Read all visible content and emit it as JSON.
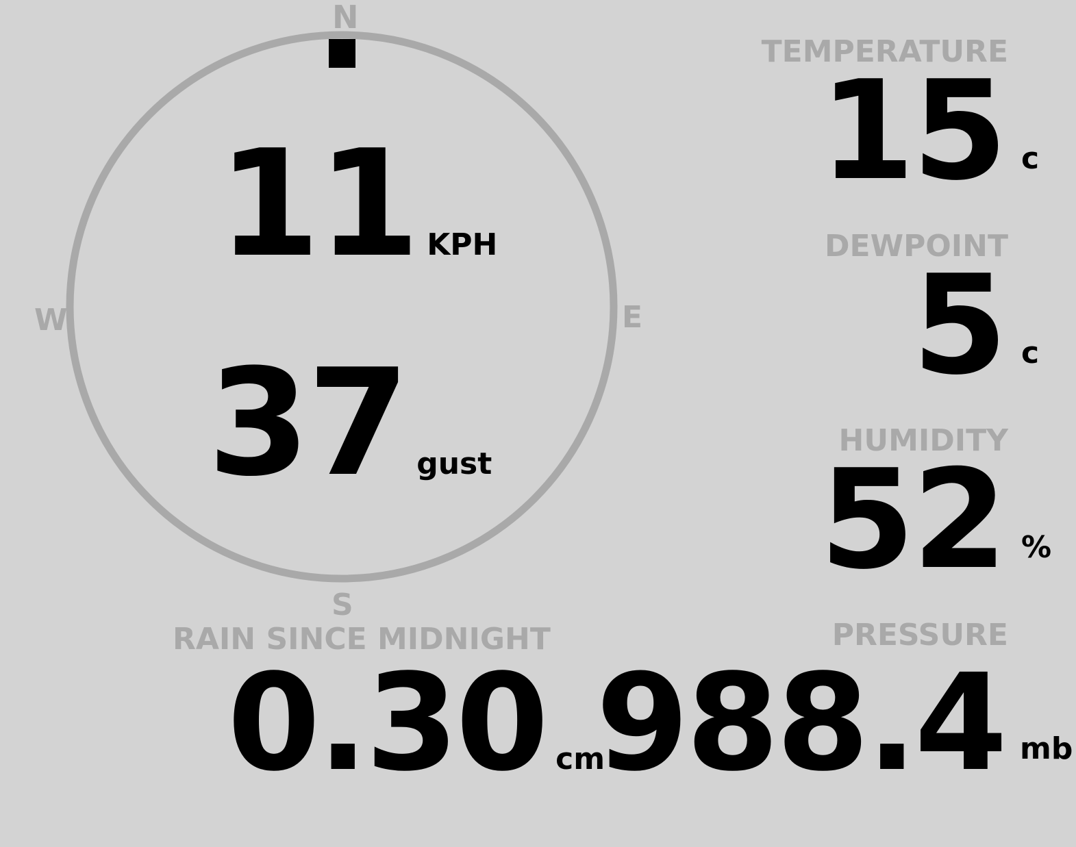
{
  "wind": {
    "speed": "11",
    "speed_unit": "KPH",
    "gust": "37",
    "gust_label": "gust",
    "direction_degrees": 0,
    "compass": {
      "n": "N",
      "e": "E",
      "s": "S",
      "w": "W"
    }
  },
  "temperature": {
    "label": "TEMPERATURE",
    "value": "15",
    "unit": "c"
  },
  "dewpoint": {
    "label": "DEWPOINT",
    "value": "5",
    "unit": "c"
  },
  "humidity": {
    "label": "HUMIDITY",
    "value": "52",
    "unit": "%"
  },
  "rain": {
    "label": "RAIN SINCE MIDNIGHT",
    "value": "0.30",
    "unit": "cm"
  },
  "pressure": {
    "label": "PRESSURE",
    "value": "988.4",
    "unit": "mb"
  },
  "colors": {
    "background": "#d3d3d3",
    "muted": "#a9a9a9",
    "text": "#000000"
  }
}
